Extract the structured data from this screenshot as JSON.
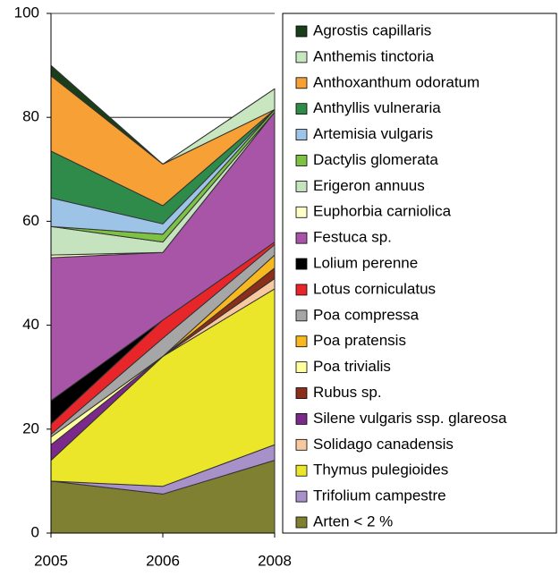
{
  "chart_data": {
    "type": "stacked_area",
    "categories": [
      "2005",
      "2006",
      "2008"
    ],
    "ylim": [
      0,
      100
    ],
    "yticks": [
      0,
      20,
      40,
      60,
      80,
      100
    ],
    "grid": true,
    "legend": "right",
    "series": [
      {
        "name": "Arten < 2 %",
        "color": "#808033",
        "values": [
          10,
          7.5,
          14
        ]
      },
      {
        "name": "Trifolium campestre",
        "color": "#a890c8",
        "values": [
          0,
          1.5,
          3
        ]
      },
      {
        "name": "Thymus pulegioides",
        "color": "#ebe62a",
        "values": [
          4,
          25,
          30
        ]
      },
      {
        "name": "Solidago canadensis",
        "color": "#f8c8a0",
        "values": [
          0,
          0,
          2
        ]
      },
      {
        "name": "Silene vulgaris ssp. glareosa",
        "color": "#7b2a8b",
        "values": [
          3,
          0,
          0
        ]
      },
      {
        "name": "Rubus sp.",
        "color": "#8b2e1a",
        "values": [
          0,
          0,
          2
        ]
      },
      {
        "name": "Poa trivialis",
        "color": "#ffffa0",
        "values": [
          1.5,
          0,
          0
        ]
      },
      {
        "name": "Poa pratensis",
        "color": "#f8b820",
        "values": [
          0,
          0,
          2.5
        ]
      },
      {
        "name": "Poa compressa",
        "color": "#a6a6a6",
        "values": [
          0.5,
          3.5,
          2
        ]
      },
      {
        "name": "Lotus corniculatus",
        "color": "#e8262a",
        "values": [
          2,
          3.5,
          0.5
        ]
      },
      {
        "name": "Lolium perenne",
        "color": "#000000",
        "values": [
          4.5,
          0,
          0
        ]
      },
      {
        "name": "Festuca sp.",
        "color": "#a855a8",
        "values": [
          27.5,
          13,
          25
        ]
      },
      {
        "name": "Euphorbia carniolica",
        "color": "#ffffc8",
        "values": [
          0.5,
          0,
          0
        ]
      },
      {
        "name": "Erigeron annuus",
        "color": "#c6e3c0",
        "values": [
          5.5,
          2,
          0
        ]
      },
      {
        "name": "Dactylis glomerata",
        "color": "#7dc242",
        "values": [
          0,
          1.5,
          0.5
        ]
      },
      {
        "name": "Artemisia vulgaris",
        "color": "#9dc3e6",
        "values": [
          5.5,
          2,
          0
        ]
      },
      {
        "name": "Anthyllis vulneraria",
        "color": "#2e8b4a",
        "values": [
          9,
          3.5,
          0
        ]
      },
      {
        "name": "Anthoxanthum odoratum",
        "color": "#f7a035",
        "values": [
          14.5,
          8,
          0
        ]
      },
      {
        "name": "Anthemis tinctoria",
        "color": "#c8e6c0",
        "values": [
          0,
          0,
          4
        ]
      },
      {
        "name": "Agrostis capillaris",
        "color": "#1a3d1a",
        "values": [
          2,
          0,
          0
        ]
      }
    ]
  }
}
